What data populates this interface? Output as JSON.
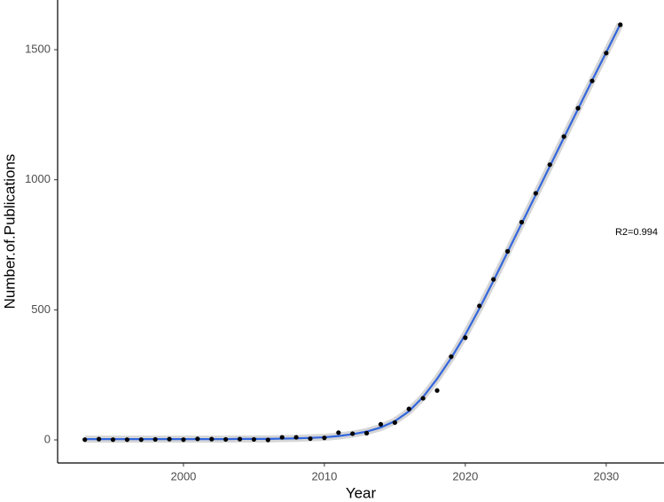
{
  "chart_data": {
    "type": "scatter",
    "x_label": "Year",
    "y_label": "Number.of.Publications",
    "annotation": "R2=0.994",
    "xlim": [
      1991.07,
      2034.1
    ],
    "ylim": [
      -88.6,
      1691
    ],
    "xticks": [
      2000,
      2010,
      2020,
      2030
    ],
    "yticks": [
      0,
      500,
      1000,
      1500
    ],
    "grid": false,
    "x": [
      1993,
      1994,
      1995,
      1996,
      1997,
      1998,
      1999,
      2000,
      2001,
      2002,
      2003,
      2004,
      2005,
      2006,
      2007,
      2008,
      2009,
      2010,
      2011,
      2012,
      2013,
      2014,
      2015,
      2016,
      2017,
      2018,
      2019,
      2020,
      2021,
      2022,
      2023,
      2024,
      2025,
      2026,
      2027,
      2028,
      2029,
      2030,
      2031
    ],
    "series": [
      {
        "color": "#000000",
        "values": [
          1,
          3,
          1,
          1,
          1,
          2,
          3,
          1,
          4,
          3,
          2,
          3,
          2,
          0,
          10,
          10,
          5,
          8,
          28,
          24,
          26,
          60,
          67,
          119,
          160,
          190,
          320,
          393,
          515,
          617,
          725,
          837,
          948,
          1058,
          1166,
          1275,
          1380,
          1487,
          1596
        ]
      },
      {
        "color": "#3366dd",
        "values": [
          3,
          3,
          3,
          3,
          3,
          3,
          3,
          3,
          3,
          3,
          3,
          4,
          4,
          4,
          5,
          6,
          8,
          10,
          15,
          22,
          32,
          48,
          72,
          110,
          165,
          235,
          315,
          405,
          505,
          612,
          722,
          832,
          942,
          1052,
          1162,
          1272,
          1382,
          1490,
          1598
        ]
      }
    ]
  }
}
